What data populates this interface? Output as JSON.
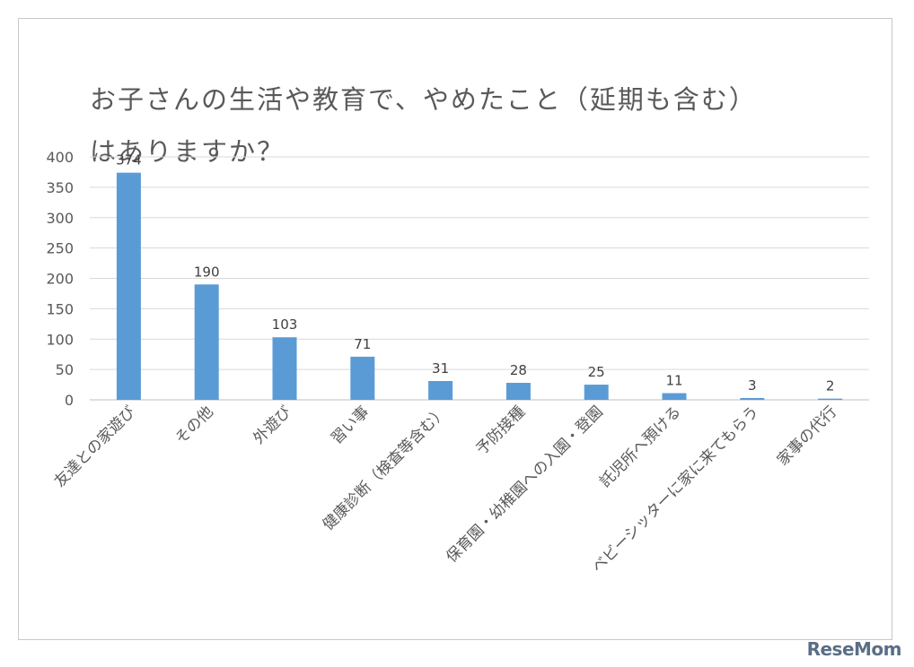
{
  "chart_data": {
    "type": "bar",
    "title": "お子さんの生活や教育で、やめたこと（延期も含む）はありますか？",
    "categories": [
      "友達との家遊び",
      "その他",
      "外遊び",
      "習い事",
      "健康診断（検査等含む）",
      "予防接種",
      "保育園・幼稚園への入園・登園",
      "託児所へ預ける",
      "ベビーシッターに家に来てもらう",
      "家事の代行"
    ],
    "values": [
      374,
      190,
      103,
      71,
      31,
      28,
      25,
      11,
      3,
      2
    ],
    "ylim": [
      0,
      400
    ],
    "yticks": [
      0,
      50,
      100,
      150,
      200,
      250,
      300,
      350,
      400
    ],
    "xlabel": "",
    "ylabel": "",
    "grid": true,
    "legend": "none",
    "bar_color": "#5b9bd5",
    "grid_color": "#d9d9d9",
    "text_color": "#595959"
  },
  "watermark": {
    "text": "ReseMom"
  }
}
